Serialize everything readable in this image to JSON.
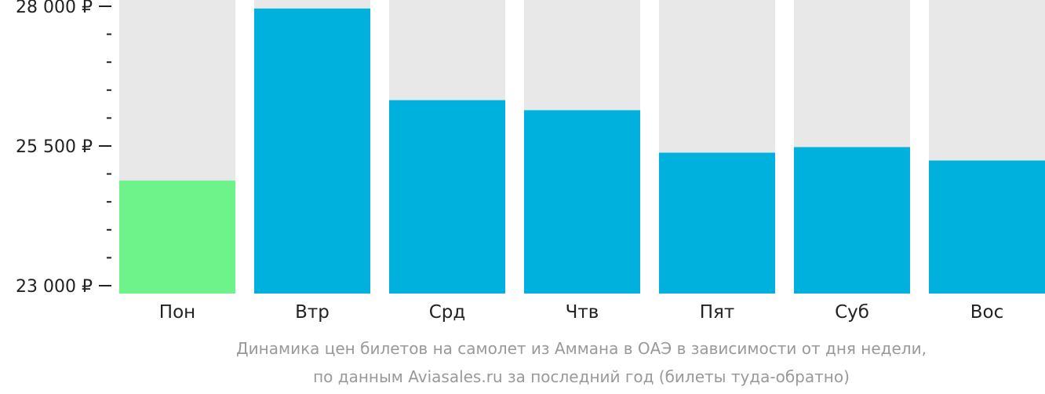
{
  "chart_data": {
    "type": "bar",
    "categories": [
      "Пон",
      "Втр",
      "Срд",
      "Чтв",
      "Пят",
      "Суб",
      "Вос"
    ],
    "values": [
      24880,
      27960,
      26320,
      26140,
      25380,
      25480,
      25240
    ],
    "ylim": [
      23000,
      28000
    ],
    "yticks": [
      {
        "value": 23000,
        "label": "23 000 ₽"
      },
      {
        "value": 25500,
        "label": "25 500 ₽"
      },
      {
        "value": 28000,
        "label": "28 000 ₽"
      }
    ],
    "minor_step": 500,
    "highlight_index": 0,
    "colors": {
      "bar": "#00b1dd",
      "highlight": "#6ef28a",
      "background_bar": "#e8e8e8",
      "axis": "#222222"
    },
    "caption": [
      "Динамика цен билетов на самолет из Аммана в ОАЭ в зависимости от дня недели,",
      "по данным Aviasales.ru за последний год (билеты туда-обратно)"
    ]
  }
}
